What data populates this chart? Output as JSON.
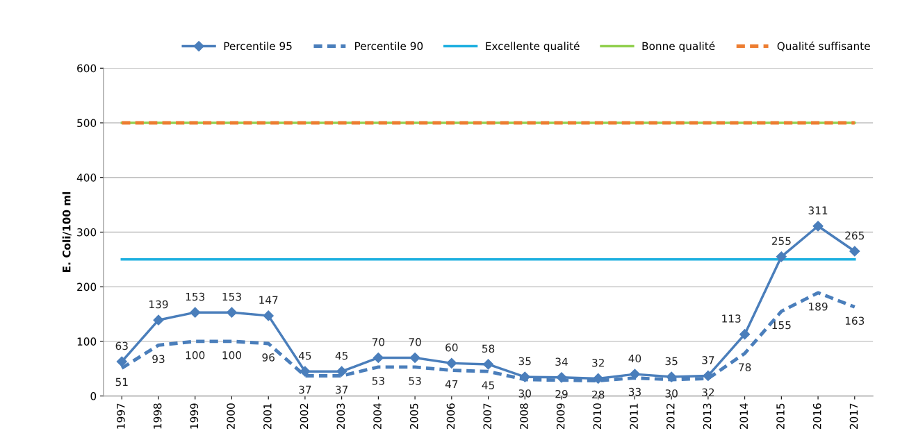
{
  "chart_data": {
    "type": "line",
    "ylabel": "E. Coli/100 ml",
    "categories": [
      "1997",
      "1998",
      "1999",
      "2000",
      "2001",
      "2002",
      "2003",
      "2004",
      "2005",
      "2006",
      "2007",
      "2008",
      "2009",
      "2010",
      "2011",
      "2012",
      "2013",
      "2014",
      "2015",
      "2016",
      "2017"
    ],
    "series": [
      {
        "name": "Percentile 95",
        "color": "#4a7ebb",
        "marker": "diamond",
        "line_style": "solid",
        "values": [
          63,
          139,
          153,
          153,
          147,
          45,
          45,
          70,
          70,
          60,
          58,
          35,
          34,
          32,
          40,
          35,
          37,
          113,
          255,
          311,
          265
        ],
        "value_labels": [
          "63",
          "139",
          "153",
          "153",
          "147",
          "45",
          "45",
          "70",
          "70",
          "60",
          "58",
          "35",
          "34",
          "32",
          "40",
          "35",
          "37",
          "113",
          "255",
          "311",
          "265"
        ]
      },
      {
        "name": "Percentile 90",
        "color": "#4a7ebb",
        "marker": "none",
        "line_style": "dashed",
        "values": [
          51,
          93,
          100,
          100,
          96,
          37,
          37,
          53,
          53,
          47,
          45,
          30,
          29,
          28,
          33,
          30,
          32,
          78,
          155,
          189,
          163
        ],
        "value_labels": [
          "51",
          "93",
          "100",
          "100",
          "96",
          "37",
          "37",
          "53",
          "53",
          "47",
          "45",
          "30",
          "29",
          "28",
          "33",
          "30",
          "32",
          "78",
          "155",
          "189",
          "163"
        ]
      },
      {
        "name": "Excellente qualité",
        "color": "#1fb0e0",
        "marker": "none",
        "line_style": "solid",
        "values": [
          250,
          250,
          250,
          250,
          250,
          250,
          250,
          250,
          250,
          250,
          250,
          250,
          250,
          250,
          250,
          250,
          250,
          250,
          250,
          250,
          250
        ]
      },
      {
        "name": "Bonne qualité",
        "color": "#92d050",
        "marker": "none",
        "line_style": "solid",
        "values": [
          500,
          500,
          500,
          500,
          500,
          500,
          500,
          500,
          500,
          500,
          500,
          500,
          500,
          500,
          500,
          500,
          500,
          500,
          500,
          500,
          500
        ]
      },
      {
        "name": "Qualité suffisante",
        "color": "#ed7d31",
        "marker": "none",
        "line_style": "dashed",
        "values": [
          500,
          500,
          500,
          500,
          500,
          500,
          500,
          500,
          500,
          500,
          500,
          500,
          500,
          500,
          500,
          500,
          500,
          500,
          500,
          500,
          500
        ]
      }
    ],
    "ylim": [
      0,
      600
    ],
    "yticks": [
      0,
      100,
      200,
      300,
      400,
      500,
      600
    ],
    "grid": "y",
    "legend": "top"
  }
}
